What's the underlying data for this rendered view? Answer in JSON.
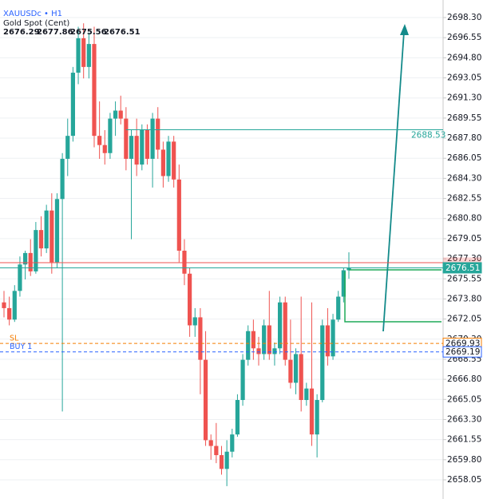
{
  "chart_data": {
    "type": "candlestick",
    "title": "XAUUSDc • H1",
    "subtitle": "Gold Spot (Cent)",
    "ohlc_header": [
      2676.29,
      2677.86,
      2675.56,
      2676.51
    ],
    "up_color": "#26a69a",
    "down_color": "#ef5350",
    "grid": true,
    "ylim": [
      2656.38,
      2699.83
    ],
    "yticks": [
      {
        "value": 2658.05,
        "label": "2658.05"
      },
      {
        "value": 2659.8,
        "label": "2659.80"
      },
      {
        "value": 2661.55,
        "label": "2661.55"
      },
      {
        "value": 2663.3,
        "label": "2663.30"
      },
      {
        "value": 2665.05,
        "label": "2665.05"
      },
      {
        "value": 2666.8,
        "label": "2666.80"
      },
      {
        "value": 2668.55,
        "label": "2668.55"
      },
      {
        "value": 2670.3,
        "label": "2670.30"
      },
      {
        "value": 2672.05,
        "label": "2672.05"
      },
      {
        "value": 2673.8,
        "label": "2673.80"
      },
      {
        "value": 2675.55,
        "label": "2675.55"
      },
      {
        "value": 2677.3,
        "label": "2677.30"
      },
      {
        "value": 2679.05,
        "label": "2679.05"
      },
      {
        "value": 2680.8,
        "label": "2680.80"
      },
      {
        "value": 2682.55,
        "label": "2682.55"
      },
      {
        "value": 2684.3,
        "label": "2684.30"
      },
      {
        "value": 2686.05,
        "label": "2686.05"
      },
      {
        "value": 2687.8,
        "label": "2687.80"
      },
      {
        "value": 2689.55,
        "label": "2689.55"
      },
      {
        "value": 2691.3,
        "label": "2691.30"
      },
      {
        "value": 2693.05,
        "label": "2693.05"
      },
      {
        "value": 2694.8,
        "label": "2694.80"
      },
      {
        "value": 2696.55,
        "label": "2696.55"
      },
      {
        "value": 2698.3,
        "label": "2698.30"
      }
    ],
    "candles": {
      "open": [
        2673.5,
        2673.0,
        2672.0,
        2674.5,
        2676.8,
        2677.8,
        2676.2,
        2679.8,
        2678.2,
        2681.5,
        2677.0,
        2682.5,
        2686.0,
        2688.0,
        2693.5,
        2696.5,
        2694.0,
        2696.0,
        2688.0,
        2687.2,
        2686.5,
        2689.5,
        2690.2,
        2689.5,
        2686.0,
        2688.0,
        2685.5,
        2688.5,
        2686.0,
        2689.5,
        2686.8,
        2684.5,
        2687.5,
        2684.2,
        2678.0,
        2676.0,
        2671.5,
        2672.2,
        2668.5,
        2661.5,
        2661.0,
        2660.2,
        2659.0,
        2660.5,
        2662.0,
        2665.0,
        2668.5,
        2671.0,
        2669.5,
        2669.0,
        2671.5,
        2669.0,
        2669.5,
        2673.5,
        2668.5,
        2666.5,
        2669.0,
        2665.0,
        2666.0,
        2662.0,
        2665.0,
        2671.5,
        2668.8,
        2672.0,
        2674.0,
        2676.29
      ],
      "high": [
        2674.5,
        2674.0,
        2675.0,
        2677.5,
        2678.0,
        2679.0,
        2680.5,
        2681.0,
        2682.0,
        2683.0,
        2683.0,
        2686.5,
        2689.5,
        2694.0,
        2697.5,
        2697.8,
        2697.0,
        2697.5,
        2691.0,
        2688.5,
        2690.0,
        2691.0,
        2691.5,
        2690.5,
        2688.5,
        2689.5,
        2689.0,
        2689.0,
        2690.0,
        2690.5,
        2687.5,
        2688.0,
        2688.0,
        2685.5,
        2679.0,
        2676.5,
        2673.0,
        2673.0,
        2671.0,
        2662.0,
        2663.0,
        2661.0,
        2661.5,
        2662.5,
        2665.5,
        2669.0,
        2671.5,
        2672.0,
        2670.5,
        2672.0,
        2674.5,
        2670.0,
        2674.0,
        2674.0,
        2672.0,
        2669.5,
        2674.0,
        2666.5,
        2673.5,
        2665.5,
        2672.0,
        2673.0,
        2672.5,
        2674.5,
        2676.5,
        2677.86
      ],
      "low": [
        2672.2,
        2671.5,
        2671.8,
        2674.0,
        2675.5,
        2675.8,
        2676.0,
        2677.5,
        2677.8,
        2676.0,
        2676.5,
        2664.0,
        2684.5,
        2687.5,
        2692.5,
        2693.0,
        2693.0,
        2687.0,
        2686.0,
        2685.5,
        2686.0,
        2688.0,
        2689.0,
        2685.0,
        2679.0,
        2684.5,
        2685.0,
        2685.5,
        2683.5,
        2686.0,
        2683.5,
        2684.0,
        2683.5,
        2677.0,
        2675.0,
        2670.5,
        2670.5,
        2665.5,
        2661.0,
        2659.8,
        2659.5,
        2658.5,
        2657.5,
        2660.0,
        2661.8,
        2664.5,
        2668.0,
        2668.5,
        2668.0,
        2668.5,
        2668.5,
        2668.0,
        2669.0,
        2668.0,
        2666.0,
        2665.5,
        2664.0,
        2664.5,
        2661.0,
        2660.0,
        2664.8,
        2668.0,
        2668.5,
        2671.8,
        2673.5,
        2675.56
      ],
      "close": [
        2673.0,
        2672.0,
        2674.5,
        2676.8,
        2677.8,
        2676.2,
        2679.8,
        2678.2,
        2681.5,
        2677.0,
        2682.5,
        2686.0,
        2688.0,
        2693.5,
        2696.5,
        2694.0,
        2696.0,
        2688.0,
        2687.2,
        2686.5,
        2689.5,
        2690.2,
        2689.5,
        2686.0,
        2688.0,
        2685.5,
        2688.5,
        2686.0,
        2689.5,
        2686.8,
        2684.5,
        2687.5,
        2684.2,
        2678.0,
        2676.0,
        2671.5,
        2672.2,
        2668.5,
        2661.5,
        2661.0,
        2660.2,
        2659.0,
        2660.5,
        2662.0,
        2665.0,
        2668.5,
        2671.0,
        2669.5,
        2669.0,
        2671.5,
        2669.0,
        2669.5,
        2673.5,
        2668.5,
        2666.5,
        2669.0,
        2665.0,
        2666.0,
        2662.0,
        2665.0,
        2671.5,
        2668.8,
        2672.0,
        2674.0,
        2676.3,
        2676.51
      ]
    },
    "levels": [
      {
        "value": 2688.53,
        "color": "#26a69a",
        "style": "solid",
        "anchor_candle": 23,
        "label_box": false
      },
      {
        "value": 2676.96,
        "color": "#ef5350",
        "style": "solid",
        "label_box": false,
        "hidden_label": true
      },
      {
        "value": 2676.51,
        "color": "#26a69a",
        "style": "solid",
        "label_box": true
      },
      {
        "value": 2669.93,
        "color": "#f57c00",
        "style": "dashed",
        "label_box": true,
        "text": "SL"
      },
      {
        "value": 2669.19,
        "color": "#2962ff",
        "style": "dashed",
        "label_box": true,
        "text": "BUY 1"
      }
    ]
  }
}
